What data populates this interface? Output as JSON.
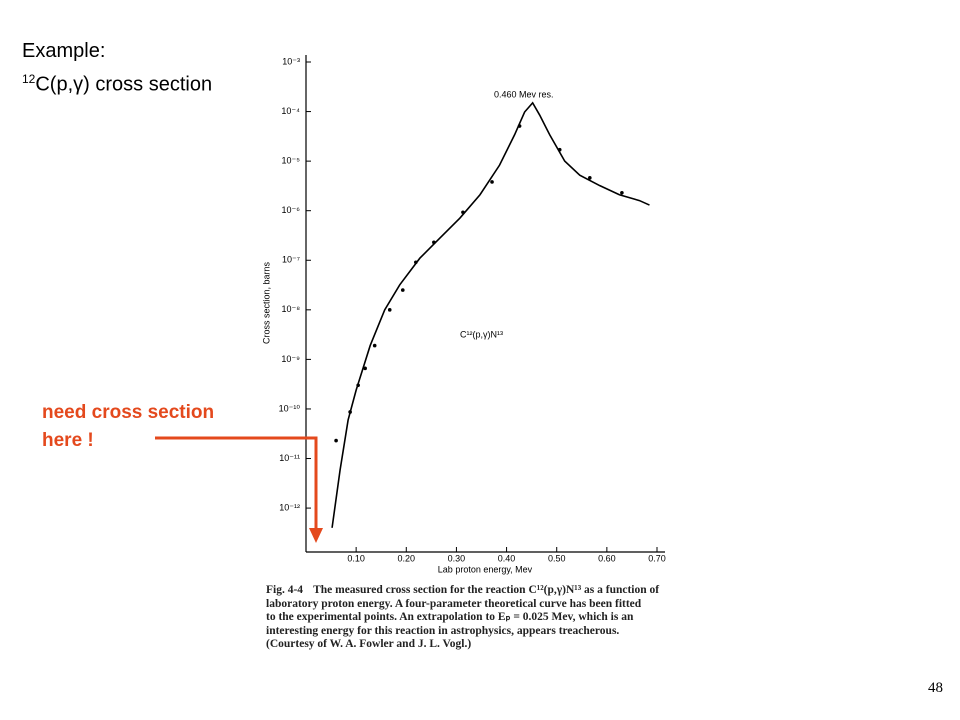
{
  "slide": {
    "title": "Example:",
    "subtitle_sup": "12",
    "subtitle": "C(p,γ) cross section",
    "note_lines": [
      "need cross section",
      "here !"
    ],
    "page_number": "48"
  },
  "caption": {
    "label": "Fig. 4-4",
    "lines": [
      "The measured cross section for the reaction C¹²(p,γ)N¹³ as a function of",
      "laboratory proton energy.  A four-parameter theoretical curve has been fitted",
      "to the experimental points.  An extrapolation to Eₚ = 0.025 Mev, which is an",
      "interesting energy for this reaction in astrophysics, appears treacherous.",
      "(Courtesy of W. A. Fowler and J. L. Vogl.)"
    ]
  },
  "chart_data": {
    "type": "line",
    "xlabel": "Lab proton energy, Mev",
    "ylabel": "Cross section, barns",
    "annotations": [
      "0.460 Mev res.",
      "C¹²(p,γ)N¹³"
    ],
    "log_y": true,
    "xlim": [
      0,
      0.7
    ],
    "xticks": [
      {
        "value": 0.1,
        "label": "0.10"
      },
      {
        "value": 0.2,
        "label": "0.20"
      },
      {
        "value": 0.3,
        "label": "0.30"
      },
      {
        "value": 0.4,
        "label": "0.40"
      },
      {
        "value": 0.5,
        "label": "0.50"
      },
      {
        "value": 0.6,
        "label": "0.60"
      },
      {
        "value": 0.7,
        "label": "0.70"
      }
    ],
    "ylim": [
      1.3e-13,
      0.001
    ],
    "yticks": [
      {
        "value": 0.001,
        "label": "10⁻³"
      },
      {
        "value": 0.0001,
        "label": "10⁻⁴"
      },
      {
        "value": 1e-05,
        "label": "10⁻⁵"
      },
      {
        "value": 1e-06,
        "label": "10⁻⁶"
      },
      {
        "value": 1e-07,
        "label": "10⁻⁷"
      },
      {
        "value": 1e-08,
        "label": "10⁻⁸"
      },
      {
        "value": 1e-09,
        "label": "10⁻⁹"
      },
      {
        "value": 1e-10,
        "label": "10⁻¹⁰"
      },
      {
        "value": 1e-11,
        "label": "10⁻¹¹"
      },
      {
        "value": 1e-12,
        "label": "10⁻¹²"
      }
    ],
    "series": [
      {
        "style": "line",
        "color": "#000000",
        "x": [
          0.052,
          0.068,
          0.084,
          0.1,
          0.128,
          0.157,
          0.187,
          0.227,
          0.267,
          0.307,
          0.347,
          0.386,
          0.416,
          0.436,
          0.452,
          0.466,
          0.486,
          0.516,
          0.546,
          0.586,
          0.625,
          0.665,
          0.685
        ],
        "values": [
          4e-13,
          5.9e-12,
          6e-11,
          2.4e-10,
          1.9e-09,
          1e-08,
          3.2e-08,
          1.1e-07,
          2.8e-07,
          7.1e-07,
          2.1e-06,
          8.3e-06,
          3.4e-05,
          9.8e-05,
          0.00015,
          8.5e-05,
          3.4e-05,
          1e-05,
          5.2e-06,
          3.2e-06,
          2.1e-06,
          1.6e-06,
          1.3e-06
        ]
      },
      {
        "style": "points",
        "color": "#000000",
        "x": [
          0.06,
          0.088,
          0.104,
          0.118,
          0.137,
          0.167,
          0.193,
          0.219,
          0.255,
          0.313,
          0.371,
          0.426,
          0.506,
          0.566,
          0.63
        ],
        "values": [
          2.3e-11,
          8.7e-11,
          3e-10,
          6.6e-10,
          1.9e-09,
          1e-08,
          2.5e-08,
          9.1e-08,
          2.3e-07,
          9.3e-07,
          3.8e-06,
          5.1e-05,
          1.7e-05,
          4.6e-06,
          2.3e-06
        ]
      }
    ]
  }
}
